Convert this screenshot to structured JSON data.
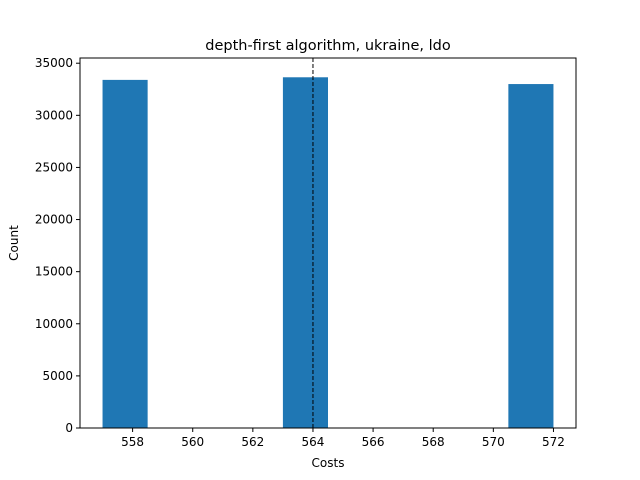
{
  "chart_data": {
    "type": "bar",
    "title": "depth-first algorithm, ukraine, ldo",
    "xlabel": "Costs",
    "ylabel": "Count",
    "xlim": [
      56.65,
      57.275
    ],
    "ylim": [
      0,
      35500
    ],
    "bins": [
      {
        "x0": 557.0,
        "x1": 558.5,
        "value": 33400
      },
      {
        "x0": 558.5,
        "x1": 560.0,
        "value": 0
      },
      {
        "x0": 560.0,
        "x1": 561.5,
        "value": 0
      },
      {
        "x0": 561.5,
        "x1": 563.0,
        "value": 0
      },
      {
        "x0": 563.0,
        "x1": 564.5,
        "value": 33650
      },
      {
        "x0": 564.5,
        "x1": 566.0,
        "value": 0
      },
      {
        "x0": 566.0,
        "x1": 567.5,
        "value": 0
      },
      {
        "x0": 567.5,
        "x1": 569.0,
        "value": 0
      },
      {
        "x0": 569.0,
        "x1": 570.5,
        "value": 0
      },
      {
        "x0": 570.5,
        "x1": 572.0,
        "value": 33000
      }
    ],
    "reference_line": {
      "x": 564.0,
      "style": "dashed",
      "color": "#000000"
    },
    "x_ticks": [
      "558",
      "560",
      "562",
      "564",
      "566",
      "568",
      "570",
      "572"
    ],
    "y_ticks": [
      "0",
      "5000",
      "10000",
      "15000",
      "20000",
      "25000",
      "30000",
      "35000"
    ],
    "bar_color": "#1f77b4",
    "grid": false,
    "legend": "none"
  }
}
